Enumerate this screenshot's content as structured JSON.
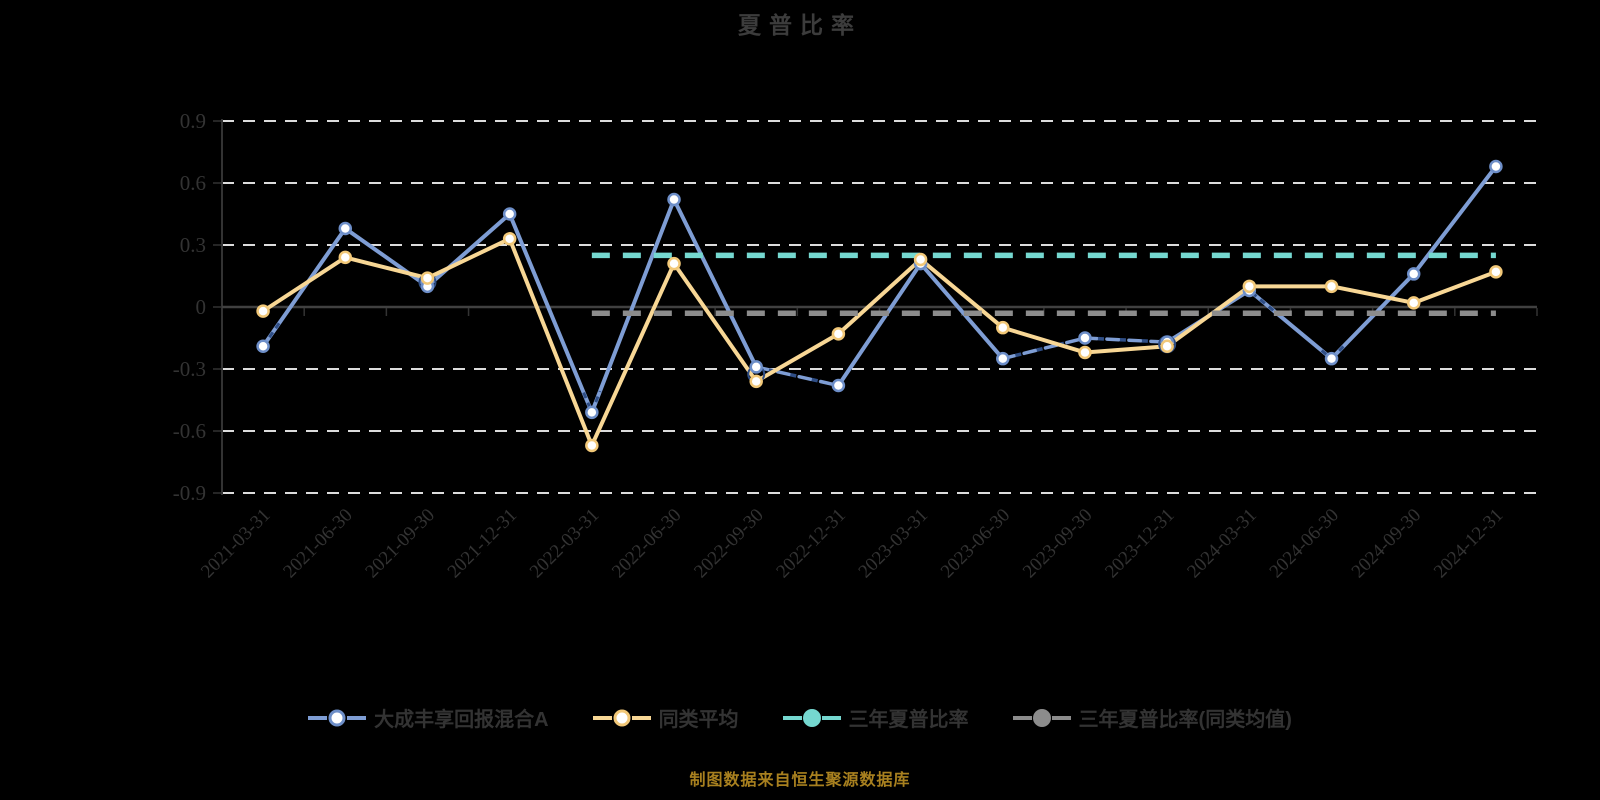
{
  "title": "夏普比率",
  "footer": {
    "source_note": "制图数据来自恒生聚源数据库"
  },
  "colors": {
    "background": "#000000",
    "title_text": "#3c3c3c",
    "axis_text": "#333333",
    "gridline": "#dcdcdc",
    "zero_line": "#404040",
    "axis_line": "#333333",
    "fund_line": "#7e9dd4",
    "fund_marker_ring": "#6d8ec8",
    "fund_dashed": "#2f4e86",
    "peer_line": "#f8d795",
    "peer_marker_ring": "#f2c878",
    "three_year_line": "#75d8d0",
    "three_year_peer_line": "#8c8c8c",
    "marker_fill": "#ffffff",
    "source_note_text": "#a8801f",
    "legend_text": "#333333"
  },
  "legend": {
    "items": [
      {
        "id": "fund",
        "label": "大成丰享回报混合A",
        "line_color": "#7e9dd4",
        "marker_fill": "#ffffff",
        "marker_ring": "#6d8ec8"
      },
      {
        "id": "peer-average",
        "label": "同类平均",
        "line_color": "#f8d795",
        "marker_fill": "#ffffff",
        "marker_ring": "#f2c878"
      },
      {
        "id": "three-year-sharpe",
        "label": "三年夏普比率",
        "line_color": "#75d8d0",
        "marker_fill": "#75d8d0",
        "marker_ring": "#75d8d0"
      },
      {
        "id": "three-year-sharpe-peer",
        "label": "三年夏普比率(同类均值)",
        "line_color": "#8c8c8c",
        "marker_fill": "#8c8c8c",
        "marker_ring": "#8c8c8c"
      }
    ]
  },
  "chart_data": {
    "type": "line",
    "title": "夏普比率",
    "categories": [
      "2021-03-31",
      "2021-06-30",
      "2021-09-30",
      "2021-12-31",
      "2022-03-31",
      "2022-06-30",
      "2022-09-30",
      "2022-12-31",
      "2023-03-31",
      "2023-06-30",
      "2023-09-30",
      "2023-12-31",
      "2024-03-31",
      "2024-06-30",
      "2024-09-30",
      "2024-12-31"
    ],
    "series": [
      {
        "name": "大成丰享回报混合A",
        "type": "line",
        "color": "#7e9dd4",
        "dashed_color": "#2f4e86",
        "values": [
          -0.19,
          0.38,
          0.1,
          0.45,
          -0.51,
          0.52,
          -0.29,
          -0.38,
          0.21,
          -0.25,
          -0.15,
          -0.17,
          0.08,
          -0.25,
          0.16,
          0.68
        ],
        "dashed_segments": [
          6,
          9,
          10
        ],
        "ring_marker_indices": [
          2,
          6,
          11
        ]
      },
      {
        "name": "同类平均",
        "type": "line",
        "color": "#f8d795",
        "values": [
          -0.02,
          0.24,
          0.14,
          0.33,
          -0.67,
          0.21,
          -0.36,
          -0.13,
          0.23,
          -0.1,
          -0.22,
          -0.19,
          0.1,
          0.1,
          0.02,
          0.17
        ]
      },
      {
        "name": "三年夏普比率",
        "type": "hline",
        "color": "#75d8d0",
        "value": 0.25,
        "start_category": "2022-03-31",
        "end_category": "2024-12-31"
      },
      {
        "name": "三年夏普比率(同类均值)",
        "type": "hline",
        "color": "#8c8c8c",
        "value": -0.03,
        "start_category": "2022-03-31",
        "end_category": "2024-12-31"
      }
    ],
    "ylim": [
      -0.9,
      0.9
    ],
    "yticks": [
      0.9,
      0.6,
      0.3,
      0,
      -0.3,
      -0.6,
      -0.9
    ],
    "grid": "dashed-horizontal",
    "legend_position": "bottom",
    "x_label_rotation": -45
  }
}
